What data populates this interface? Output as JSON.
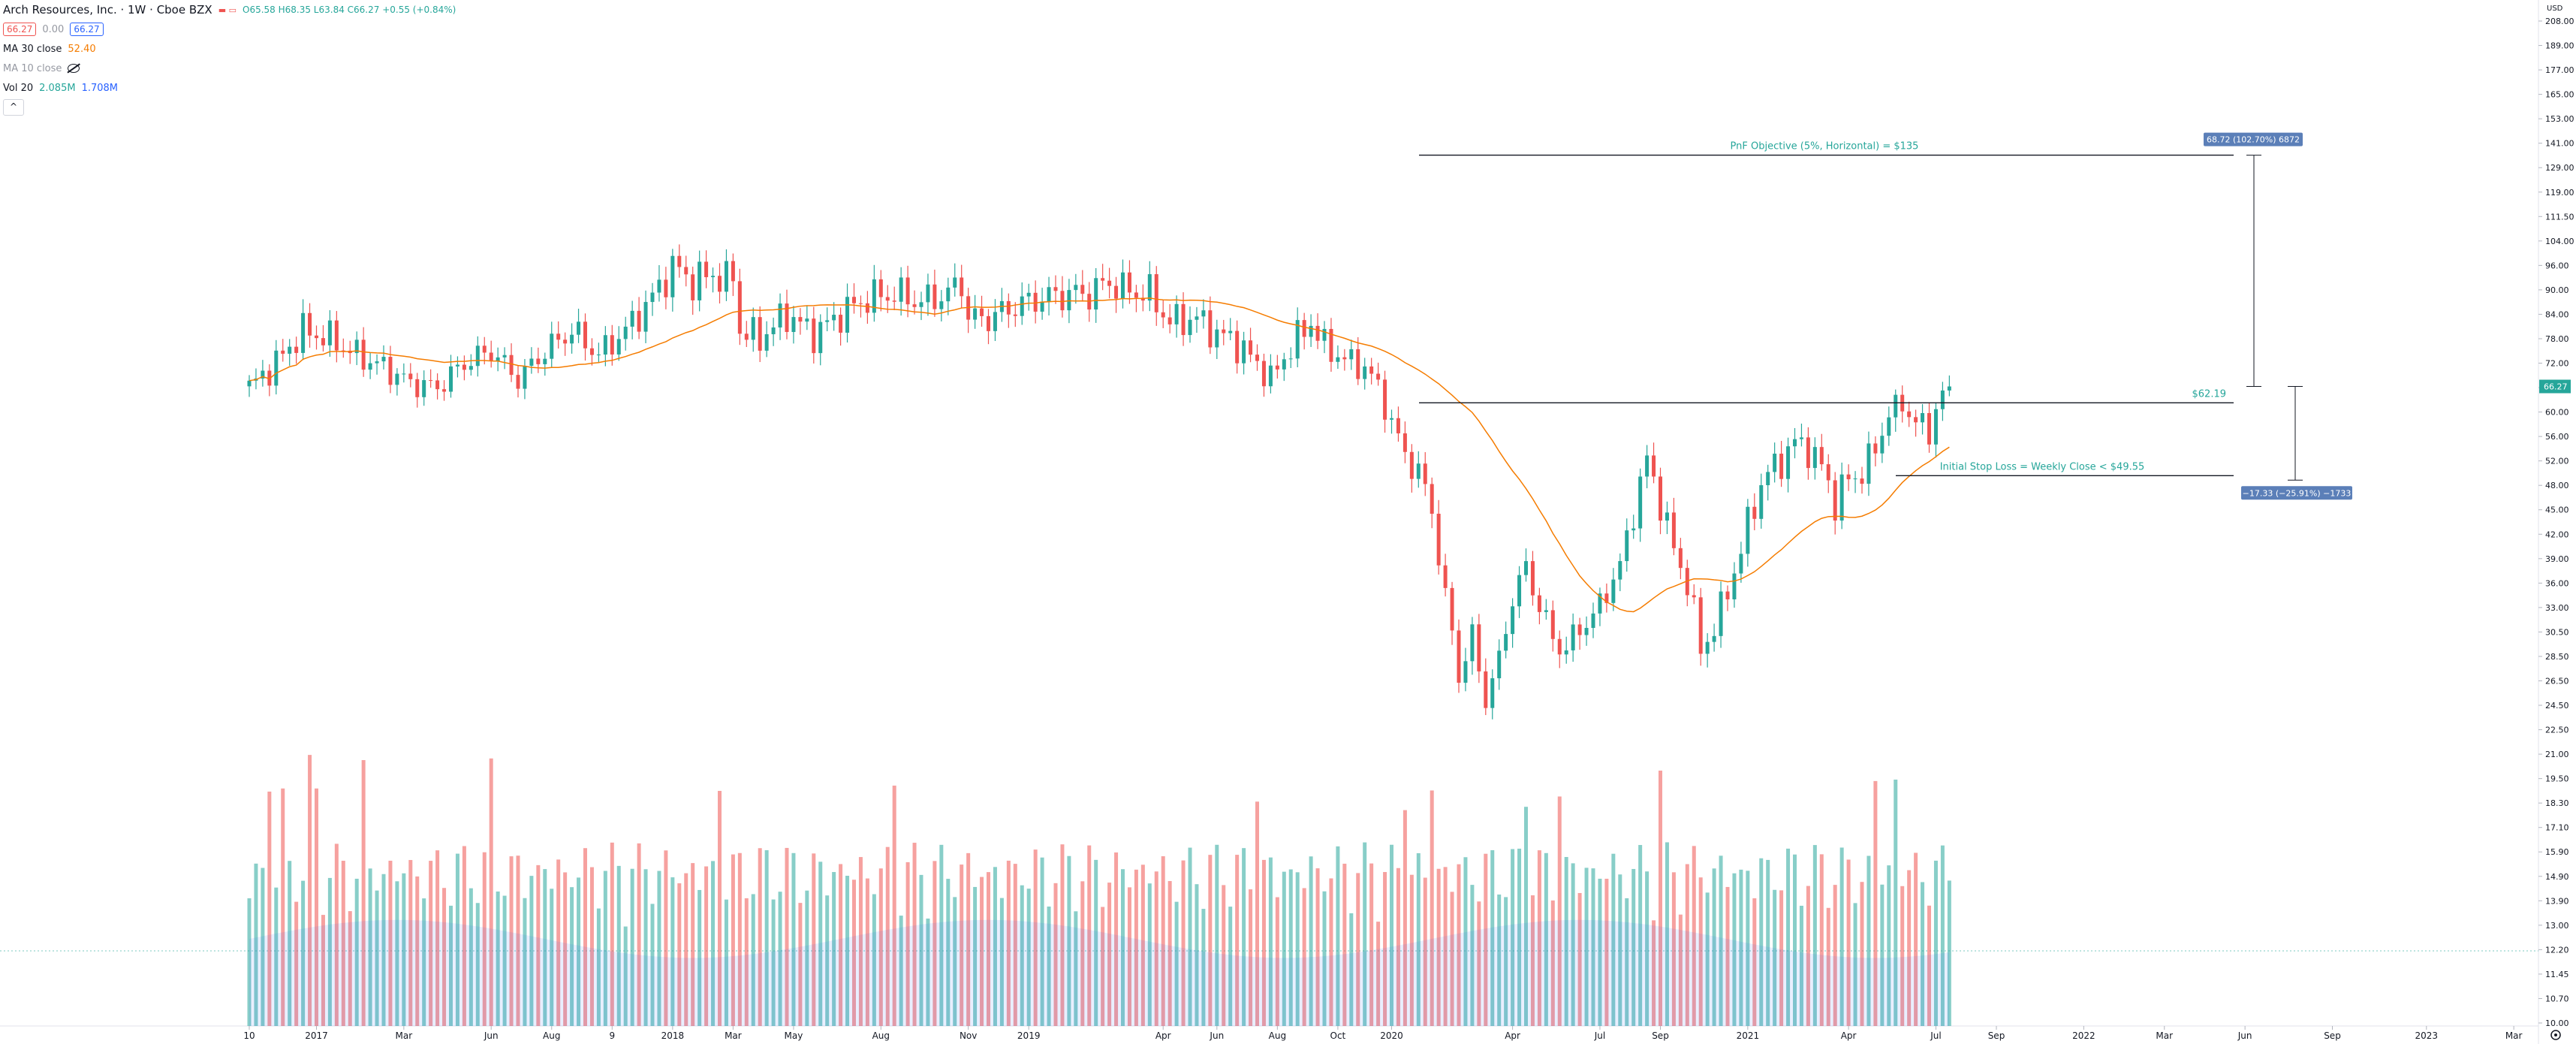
{
  "legend": {
    "title": "Arch Resources, Inc. · 1W · Cboe BZX",
    "ohlc": "O65.58 H68.35 L63.84 C66.27 +0.55 (+0.84%)",
    "bid": "66.27",
    "spread": "0.00",
    "ask": "66.27",
    "ma30_label": "MA 30 close",
    "ma30_value": "52.40",
    "ma10_label": "MA 10 close",
    "vol_label": "Vol 20",
    "vol_value1": "2.085M",
    "vol_value2": "1.708M",
    "collapse_label": "^",
    "currency": "USD"
  },
  "colors": {
    "up": "#26a69a",
    "down": "#ef5350",
    "ma": "#f57c00",
    "annotation_text": "#26a69a",
    "measure_box": "#5b7fb8"
  },
  "chart_data": {
    "type": "candlestick",
    "interval": "1W",
    "scale": "log",
    "x_ticks": [
      "10",
      "2017",
      "Mar",
      "Jun",
      "Aug",
      "9",
      "2018",
      "Mar",
      "May",
      "Aug",
      "Nov",
      "2019",
      "Apr",
      "Jun",
      "Aug",
      "Oct",
      "2020",
      "Apr",
      "Jul",
      "Sep",
      "2021",
      "Apr",
      "Jul",
      "Sep",
      "2022",
      "Mar",
      "Jun",
      "Sep",
      "2023",
      "Mar"
    ],
    "x_tick_weeks": [
      0,
      10,
      23,
      36,
      45,
      54,
      63,
      72,
      81,
      94,
      107,
      116,
      136,
      144,
      153,
      162,
      170,
      188,
      201,
      210,
      223,
      238,
      251,
      260,
      273,
      285,
      297,
      310,
      324,
      337
    ],
    "y_ticks": [
      208.0,
      189.0,
      177.0,
      165.0,
      153.0,
      141.0,
      129.0,
      119.0,
      111.5,
      104.0,
      96.0,
      90.0,
      84.0,
      78.0,
      72.0,
      66.0,
      60.0,
      56.0,
      52.0,
      48.0,
      45.0,
      42.0,
      39.0,
      36.0,
      33.0,
      30.5,
      28.5,
      26.5,
      24.5,
      22.5,
      21.0,
      19.5,
      18.3,
      17.1,
      15.9,
      14.9,
      13.9,
      13.0,
      12.2,
      11.45,
      10.7,
      10.0
    ],
    "last_price": 66.27,
    "levels": [
      {
        "label": "PnF Objective (5%, Horizontal) = $135",
        "price": 135
      },
      {
        "label": "$62.19",
        "price": 62.19
      },
      {
        "label": "Initial Stop Loss = Weekly Close < $49.55",
        "price": 49.55
      }
    ],
    "measures": [
      {
        "label": "68.72 (102.70%) 6872"
      },
      {
        "label": "−17.33 (−25.91%) −1733"
      }
    ],
    "close_anchors": [
      [
        0,
        66
      ],
      [
        4,
        72
      ],
      [
        8,
        80
      ],
      [
        12,
        78
      ],
      [
        16,
        74
      ],
      [
        20,
        71
      ],
      [
        24,
        67
      ],
      [
        28,
        66
      ],
      [
        32,
        72
      ],
      [
        36,
        75
      ],
      [
        40,
        68
      ],
      [
        44,
        75
      ],
      [
        48,
        80
      ],
      [
        52,
        74
      ],
      [
        56,
        80
      ],
      [
        60,
        88
      ],
      [
        63,
        96
      ],
      [
        66,
        92
      ],
      [
        69,
        94
      ],
      [
        71,
        92
      ],
      [
        72,
        94
      ],
      [
        73,
        80
      ],
      [
        76,
        78
      ],
      [
        80,
        84
      ],
      [
        84,
        79
      ],
      [
        88,
        84
      ],
      [
        92,
        88
      ],
      [
        96,
        89
      ],
      [
        100,
        87
      ],
      [
        104,
        89
      ],
      [
        106,
        92
      ],
      [
        107,
        83
      ],
      [
        110,
        83
      ],
      [
        114,
        86
      ],
      [
        118,
        88
      ],
      [
        122,
        89
      ],
      [
        125,
        89
      ],
      [
        128,
        92
      ],
      [
        130,
        90
      ],
      [
        134,
        89
      ],
      [
        137,
        82
      ],
      [
        141,
        83
      ],
      [
        144,
        79
      ],
      [
        146,
        78
      ],
      [
        148,
        75
      ],
      [
        150,
        72
      ],
      [
        152,
        68
      ],
      [
        155,
        76
      ],
      [
        158,
        82
      ],
      [
        160,
        76
      ],
      [
        162,
        74
      ],
      [
        164,
        72
      ],
      [
        166,
        71
      ],
      [
        168,
        66
      ],
      [
        170,
        58
      ],
      [
        172,
        53
      ],
      [
        174,
        50
      ],
      [
        176,
        45
      ],
      [
        178,
        34
      ],
      [
        180,
        27
      ],
      [
        182,
        30
      ],
      [
        184,
        25
      ],
      [
        186,
        28
      ],
      [
        188,
        34
      ],
      [
        190,
        38
      ],
      [
        192,
        33
      ],
      [
        194,
        30
      ],
      [
        196,
        29
      ],
      [
        198,
        31
      ],
      [
        200,
        32
      ],
      [
        202,
        35
      ],
      [
        204,
        38
      ],
      [
        206,
        45
      ],
      [
        208,
        52
      ],
      [
        210,
        46
      ],
      [
        212,
        40
      ],
      [
        214,
        36
      ],
      [
        216,
        29
      ],
      [
        218,
        31
      ],
      [
        220,
        35
      ],
      [
        222,
        40
      ],
      [
        224,
        46
      ],
      [
        226,
        50
      ],
      [
        228,
        52
      ],
      [
        230,
        55
      ],
      [
        232,
        54
      ],
      [
        234,
        51
      ],
      [
        236,
        46
      ],
      [
        238,
        49
      ],
      [
        240,
        50
      ],
      [
        242,
        54
      ],
      [
        244,
        60
      ],
      [
        246,
        62
      ],
      [
        248,
        58
      ],
      [
        250,
        57
      ],
      [
        251,
        61
      ],
      [
        252,
        64
      ],
      [
        253,
        66.27
      ]
    ],
    "volume_ticks": [],
    "series": []
  }
}
